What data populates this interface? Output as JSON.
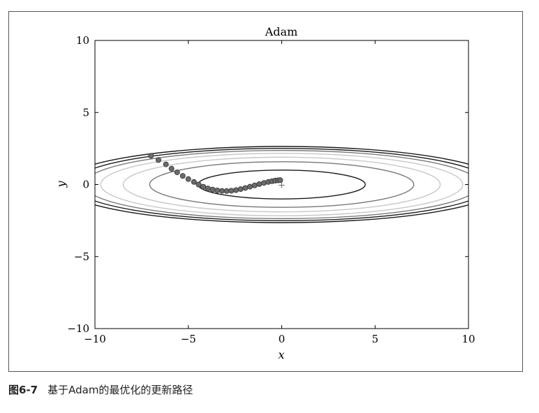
{
  "caption": {
    "figure_number": "图6-7",
    "text": "基于Adam的最优化的更新路径"
  },
  "chart_data": {
    "type": "scatter",
    "title": "Adam",
    "xlabel": "x",
    "ylabel": "y",
    "xlim": [
      -10,
      10
    ],
    "ylim": [
      -10,
      10
    ],
    "x_ticks": [
      -10,
      -5,
      0,
      5,
      10
    ],
    "y_ticks": [
      -10,
      -5,
      0,
      5,
      10
    ],
    "x_tick_labels": [
      "−10",
      "−5",
      "0",
      "5",
      "10"
    ],
    "y_tick_labels": [
      "−10",
      "−5",
      "0",
      "5",
      "10"
    ],
    "grid": false,
    "minimum_marker": {
      "x": 0,
      "y": 0,
      "symbol": "+"
    },
    "contour_function": "f(x, y) = x^2 / 20 + y^2",
    "contour_levels": [
      {
        "level": 1.0,
        "color": "#1a1a1a"
      },
      {
        "level": 2.5,
        "color": "#777777"
      },
      {
        "level": 3.6,
        "color": "#c8c8c8"
      },
      {
        "level": 4.7,
        "color": "#c8c8c8"
      },
      {
        "level": 5.6,
        "color": "#7a7a7a"
      },
      {
        "level": 6.3,
        "color": "#1a1a1a"
      },
      {
        "level": 7.0,
        "color": "#1a1a1a"
      }
    ],
    "series": [
      {
        "marker_color": "#6b6b6b",
        "points": [
          [
            -7.0,
            2.0
          ],
          [
            -6.6,
            1.7
          ],
          [
            -6.2,
            1.4
          ],
          [
            -5.9,
            1.1
          ],
          [
            -5.6,
            0.85
          ],
          [
            -5.3,
            0.6
          ],
          [
            -5.0,
            0.38
          ],
          [
            -4.7,
            0.18
          ],
          [
            -4.45,
            0.0
          ],
          [
            -4.2,
            -0.15
          ],
          [
            -3.95,
            -0.27
          ],
          [
            -3.7,
            -0.35
          ],
          [
            -3.45,
            -0.41
          ],
          [
            -3.2,
            -0.44
          ],
          [
            -2.95,
            -0.45
          ],
          [
            -2.7,
            -0.43
          ],
          [
            -2.45,
            -0.39
          ],
          [
            -2.2,
            -0.32
          ],
          [
            -1.95,
            -0.24
          ],
          [
            -1.7,
            -0.15
          ],
          [
            -1.45,
            -0.06
          ],
          [
            -1.2,
            0.03
          ],
          [
            -0.95,
            0.11
          ],
          [
            -0.72,
            0.18
          ],
          [
            -0.52,
            0.23
          ],
          [
            -0.35,
            0.27
          ],
          [
            -0.2,
            0.29
          ],
          [
            -0.08,
            0.3
          ]
        ]
      }
    ]
  }
}
